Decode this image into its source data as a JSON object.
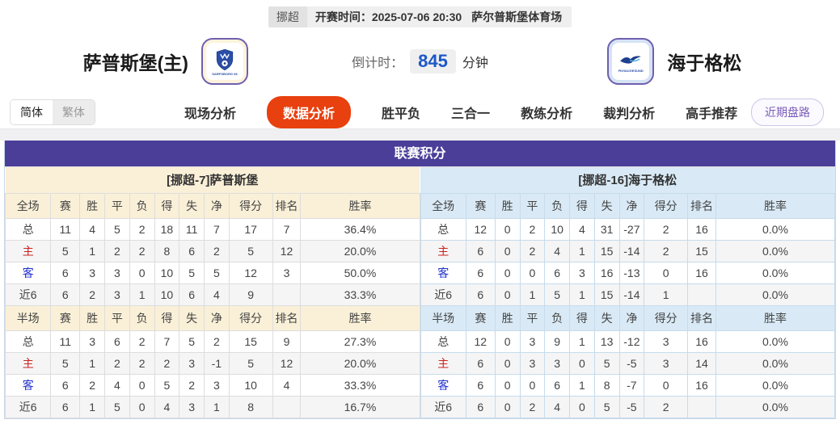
{
  "meta": {
    "league": "挪超",
    "kickoff": "开赛时间：2025-07-06 20:30",
    "venue": "萨尔普斯堡体育场"
  },
  "header": {
    "home_team": "萨普斯堡(主)",
    "home_logo_text": "SARPSBORG 08",
    "away_team": "海于格松",
    "away_logo_text": "FKHAUGESUND",
    "countdown_label": "倒计时：",
    "countdown_value": "845",
    "countdown_unit": "分钟"
  },
  "lang_toggle": {
    "simplified": "简体",
    "traditional": "繁体"
  },
  "tabs": [
    {
      "key": "live-analysis",
      "label": "现场分析",
      "active": false
    },
    {
      "key": "data-analysis",
      "label": "数据分析",
      "active": true
    },
    {
      "key": "win-draw-lose",
      "label": "胜平负",
      "active": false
    },
    {
      "key": "three-in-one",
      "label": "三合一",
      "active": false
    },
    {
      "key": "coach-analysis",
      "label": "教练分析",
      "active": false
    },
    {
      "key": "referee-analysis",
      "label": "裁判分析",
      "active": false
    },
    {
      "key": "expert-picks",
      "label": "高手推荐",
      "active": false
    }
  ],
  "recent_button": "近期盘路",
  "table": {
    "title": "联赛积分",
    "home_header": "[挪超-7]萨普斯堡",
    "away_header": "[挪超-16]海于格松",
    "columns_full": [
      "全场",
      "赛",
      "胜",
      "平",
      "负",
      "得",
      "失",
      "净",
      "得分",
      "排名",
      "胜率"
    ],
    "columns_half": [
      "半场",
      "赛",
      "胜",
      "平",
      "负",
      "得",
      "失",
      "净",
      "得分",
      "排名",
      "胜率"
    ],
    "home_full": [
      [
        "总",
        "11",
        "4",
        "5",
        "2",
        "18",
        "11",
        "7",
        "17",
        "7",
        "36.4%"
      ],
      [
        "主",
        "5",
        "1",
        "2",
        "2",
        "8",
        "6",
        "2",
        "5",
        "12",
        "20.0%"
      ],
      [
        "客",
        "6",
        "3",
        "3",
        "0",
        "10",
        "5",
        "5",
        "12",
        "3",
        "50.0%"
      ],
      [
        "近6",
        "6",
        "2",
        "3",
        "1",
        "10",
        "6",
        "4",
        "9",
        "",
        "33.3%"
      ]
    ],
    "home_half": [
      [
        "总",
        "11",
        "3",
        "6",
        "2",
        "7",
        "5",
        "2",
        "15",
        "9",
        "27.3%"
      ],
      [
        "主",
        "5",
        "1",
        "2",
        "2",
        "2",
        "3",
        "-1",
        "5",
        "12",
        "20.0%"
      ],
      [
        "客",
        "6",
        "2",
        "4",
        "0",
        "5",
        "2",
        "3",
        "10",
        "4",
        "33.3%"
      ],
      [
        "近6",
        "6",
        "1",
        "5",
        "0",
        "4",
        "3",
        "1",
        "8",
        "",
        "16.7%"
      ]
    ],
    "away_full": [
      [
        "总",
        "12",
        "0",
        "2",
        "10",
        "4",
        "31",
        "-27",
        "2",
        "16",
        "0.0%"
      ],
      [
        "主",
        "6",
        "0",
        "2",
        "4",
        "1",
        "15",
        "-14",
        "2",
        "15",
        "0.0%"
      ],
      [
        "客",
        "6",
        "0",
        "0",
        "6",
        "3",
        "16",
        "-13",
        "0",
        "16",
        "0.0%"
      ],
      [
        "近6",
        "6",
        "0",
        "1",
        "5",
        "1",
        "15",
        "-14",
        "1",
        "",
        "0.0%"
      ]
    ],
    "away_half": [
      [
        "总",
        "12",
        "0",
        "3",
        "9",
        "1",
        "13",
        "-12",
        "3",
        "16",
        "0.0%"
      ],
      [
        "主",
        "6",
        "0",
        "3",
        "3",
        "0",
        "5",
        "-5",
        "3",
        "14",
        "0.0%"
      ],
      [
        "客",
        "6",
        "0",
        "0",
        "6",
        "1",
        "8",
        "-7",
        "0",
        "16",
        "0.0%"
      ],
      [
        "近6",
        "6",
        "0",
        "2",
        "4",
        "0",
        "5",
        "-5",
        "2",
        "",
        "0.0%"
      ]
    ]
  },
  "colors": {
    "title_bar_purple": "#4a3e99",
    "home_header_cream": "#faf0d8",
    "away_header_blue": "#d9eaf6",
    "active_tab_red": "#e8400e",
    "home_row_label_red": "#cc2222",
    "away_row_label_blue": "#2233cc",
    "countdown_blue": "#1c57c8",
    "recent_button_purple": "#7a5cb8"
  }
}
